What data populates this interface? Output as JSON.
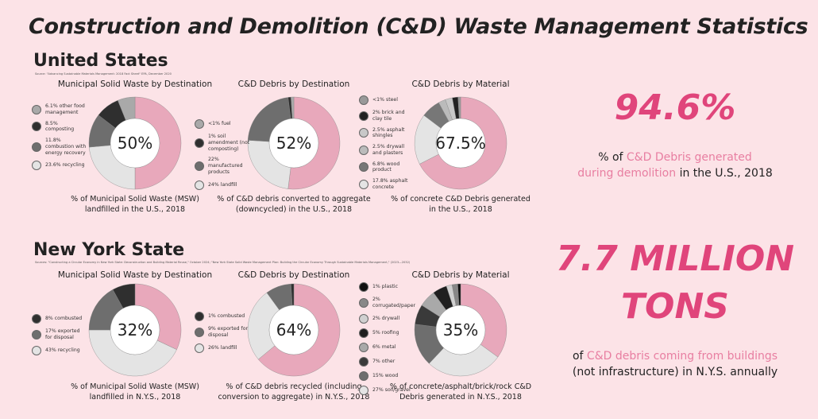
{
  "title": "Construction and Demolition (C&D) Waste Management Statistics",
  "colors": {
    "pink": "#e8a8bb",
    "accent": "#e0457b",
    "light": "#e4e4e4"
  },
  "us": {
    "heading": "United States",
    "source": "Source: \"Advancing Sustainable Materials Management: 2018 Fact Sheet\" EPA, December 2020",
    "stat": {
      "value": "94.6%",
      "pre": "% of ",
      "hl1": "C&D Debris generated",
      "hl2": "during demolition",
      "post": " in the U.S., 2018"
    }
  },
  "nys": {
    "heading": "New York State",
    "source": "Sources: \"Constructing a Circular Economy in New York State: Deconstruction and Building Material Reuse,\" October 2024; \"New York State Solid Waste Management Plan: Building the Circular Economy Through Sustainable Materials Management,\" (2023—2032)",
    "stat": {
      "value1": "7.7 MILLION",
      "value2": "TONS",
      "pre": "of ",
      "hl1": "C&D debris coming from buildings",
      "line2": "(not infrastructure) in N.Y.S. annually"
    }
  },
  "chart_data": [
    {
      "type": "pie",
      "region": "us",
      "title": "Municipal Solid Waste by Destination",
      "center": "50%",
      "slices": [
        {
          "label": "Landfilled",
          "value": 50,
          "color": "#e8a8bb"
        },
        {
          "label": "23.6% recycling",
          "value": 23.6,
          "color": "#e4e4e4"
        },
        {
          "label": "11.8% combustion with energy recovery",
          "value": 11.8,
          "color": "#6e6e6e"
        },
        {
          "label": "8.5% composting",
          "value": 8.5,
          "color": "#2f2f2f"
        },
        {
          "label": "6.1% other food management",
          "value": 6.1,
          "color": "#a9a9a9"
        }
      ],
      "legend": [
        "6.1% other food management",
        "8.5% composting",
        "11.8% combustion with energy recovery",
        "23.6% recycling"
      ],
      "caption": [
        "% of Municipal Solid Waste (MSW)",
        "landfilled in the U.S., 2018"
      ]
    },
    {
      "type": "pie",
      "region": "us",
      "title": "C&D Debris by Destination",
      "center": "52%",
      "slices": [
        {
          "label": "Converted to aggregate",
          "value": 52,
          "color": "#e8a8bb"
        },
        {
          "label": "24% landfill",
          "value": 24,
          "color": "#e4e4e4"
        },
        {
          "label": "22% manufactured products",
          "value": 22,
          "color": "#6e6e6e"
        },
        {
          "label": "1% soil amendment (not composting)",
          "value": 1,
          "color": "#2f2f2f"
        },
        {
          "label": "<1% fuel",
          "value": 1,
          "color": "#a9a9a9"
        }
      ],
      "legend": [
        "<1% fuel",
        "1% soil amendment (not composting)",
        "22% manufactured products",
        "24% landfill"
      ],
      "caption": [
        "% of C&D debris converted to aggregate",
        "(downcycled) in the U.S., 2018"
      ]
    },
    {
      "type": "pie",
      "region": "us",
      "title": "C&D Debris by Material",
      "center": "67.5%",
      "slices": [
        {
          "label": "Concrete",
          "value": 67.5,
          "color": "#e8a8bb"
        },
        {
          "label": "17.8% asphalt concrete",
          "value": 17.8,
          "color": "#e4e4e4"
        },
        {
          "label": "6.8% wood product",
          "value": 6.8,
          "color": "#777777"
        },
        {
          "label": "2.5% drywall and plasters",
          "value": 2.5,
          "color": "#bbbbbb"
        },
        {
          "label": "2.5% asphalt shingles",
          "value": 2.5,
          "color": "#c8c8c8"
        },
        {
          "label": "2% brick and clay tile",
          "value": 2,
          "color": "#222222"
        },
        {
          "label": "<1% steel",
          "value": 0.9,
          "color": "#999999"
        }
      ],
      "legend": [
        "<1% steel",
        "2% brick and clay tile",
        "2.5% asphalt shingles",
        "2.5% drywall and plasters",
        "6.8% wood product",
        "17.8% asphalt concrete"
      ],
      "caption": [
        "% of concrete C&D Debris generated",
        "in the U.S., 2018"
      ]
    },
    {
      "type": "pie",
      "region": "nys",
      "title": "Municipal Solid Waste by Destination",
      "center": "32%",
      "slices": [
        {
          "label": "Landfilled",
          "value": 32,
          "color": "#e8a8bb"
        },
        {
          "label": "43% recycling",
          "value": 43,
          "color": "#e4e4e4"
        },
        {
          "label": "17% exported for disposal",
          "value": 17,
          "color": "#6e6e6e"
        },
        {
          "label": "8% combusted",
          "value": 8,
          "color": "#2f2f2f"
        }
      ],
      "legend": [
        "8% combusted",
        "17% exported for disposal",
        "43% recycling"
      ],
      "caption": [
        "% of Municipal Solid Waste (MSW)",
        "landfilled in N.Y.S., 2018"
      ]
    },
    {
      "type": "pie",
      "region": "nys",
      "title": "C&D Debris by Destination",
      "center": "64%",
      "slices": [
        {
          "label": "Recycled",
          "value": 64,
          "color": "#e8a8bb"
        },
        {
          "label": "26% landfill",
          "value": 26,
          "color": "#e4e4e4"
        },
        {
          "label": "9% exported for disposal",
          "value": 9,
          "color": "#6e6e6e"
        },
        {
          "label": "1% combusted",
          "value": 1,
          "color": "#2f2f2f"
        }
      ],
      "legend": [
        "1% combusted",
        "9% exported for disposal",
        "26% landfill"
      ],
      "caption": [
        "% of C&D debris recycled (including",
        "conversion to aggregate) in N.Y.S., 2018"
      ]
    },
    {
      "type": "pie",
      "region": "nys",
      "title": "C&D Debris by Material",
      "center": "35%",
      "slices": [
        {
          "label": "Concrete/asphalt/brick/rock",
          "value": 35,
          "color": "#e8a8bb"
        },
        {
          "label": "27% soil/gravel",
          "value": 27,
          "color": "#e4e4e4"
        },
        {
          "label": "15% wood",
          "value": 15,
          "color": "#6e6e6e"
        },
        {
          "label": "7% other",
          "value": 7,
          "color": "#3a3a3a"
        },
        {
          "label": "6% metal",
          "value": 6,
          "color": "#a9a9a9"
        },
        {
          "label": "5% roofing",
          "value": 5,
          "color": "#1f1f1f"
        },
        {
          "label": "2% drywall",
          "value": 2,
          "color": "#d0d0d0"
        },
        {
          "label": "2% corrugated/paper",
          "value": 2,
          "color": "#888888"
        },
        {
          "label": "1% plastic",
          "value": 1,
          "color": "#111111"
        }
      ],
      "legend": [
        "1% plastic",
        "2% corrugated/paper",
        "2% drywall",
        "5% roofing",
        "6% metal",
        "7% other",
        "15% wood",
        "27% soil/gravel"
      ],
      "caption": [
        "% of concrete/asphalt/brick/rock C&D",
        "Debris generated in N.Y.S., 2018"
      ]
    }
  ]
}
